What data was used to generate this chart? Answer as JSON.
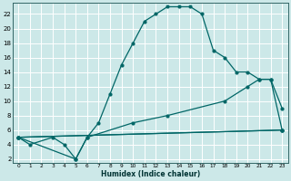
{
  "xlabel": "Humidex (Indice chaleur)",
  "bg_color": "#cce8e8",
  "grid_color": "#ffffff",
  "line_color": "#006666",
  "xlim": [
    -0.5,
    23.5
  ],
  "ylim": [
    1.5,
    23.5
  ],
  "xticks": [
    0,
    1,
    2,
    3,
    4,
    5,
    6,
    7,
    8,
    9,
    10,
    11,
    12,
    13,
    14,
    15,
    16,
    17,
    18,
    19,
    20,
    21,
    22,
    23
  ],
  "yticks": [
    2,
    4,
    6,
    8,
    10,
    12,
    14,
    16,
    18,
    20,
    22
  ],
  "series1_x": [
    0,
    1,
    3,
    4,
    5,
    6,
    7,
    8,
    9,
    10,
    11,
    12,
    13,
    14,
    15,
    16,
    17,
    18,
    19,
    20,
    21,
    22,
    23
  ],
  "series1_y": [
    5,
    4,
    5,
    4,
    2,
    5,
    7,
    11,
    15,
    18,
    21,
    22,
    23,
    23,
    23,
    22,
    17,
    16,
    14,
    14,
    13,
    13,
    9
  ],
  "series2_x": [
    0,
    5,
    6,
    10,
    13,
    18,
    20,
    21,
    22,
    23
  ],
  "series2_y": [
    5,
    2,
    5,
    7,
    8,
    10,
    12,
    13,
    13,
    6
  ],
  "series3_x": [
    0,
    23
  ],
  "series3_y": [
    5,
    6
  ],
  "series4_x": [
    0,
    23
  ],
  "series4_y": [
    5,
    6
  ]
}
